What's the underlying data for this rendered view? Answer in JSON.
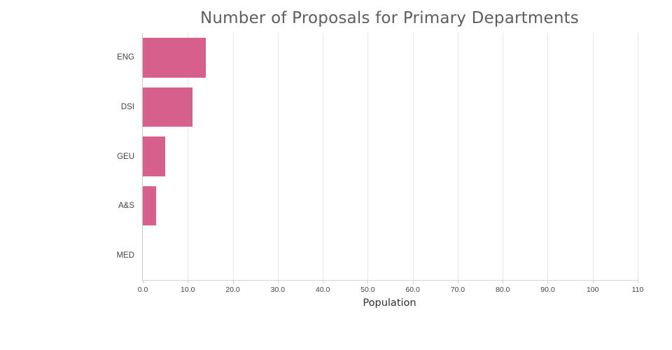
{
  "title": "Number of Proposals for Primary Departments",
  "chart_data": {
    "type": "bar",
    "orientation": "horizontal",
    "title": "Number of Proposals for Primary Departments",
    "categories": [
      "ENG",
      "DSI",
      "GEU",
      "A&S",
      "MED"
    ],
    "values": [
      14,
      11,
      5,
      3,
      0
    ],
    "xlabel": "Population",
    "ylabel": "",
    "xlim": [
      0,
      110
    ],
    "xticks": [
      0,
      10,
      20,
      30,
      40,
      50,
      60,
      70,
      80,
      90,
      100,
      110
    ],
    "xtick_labels": [
      "0.0",
      "10.0",
      "20.0",
      "30.0",
      "40.0",
      "50.0",
      "60.0",
      "70.0",
      "80.0",
      "90.0",
      "100",
      "110"
    ],
    "grid": true,
    "legend": false,
    "bar_color": "#d6608b",
    "grid_color": "#e7e7e7",
    "axis_color": "#c9c9c9",
    "title_color": "#5e5e5e",
    "tick_color": "#444444"
  }
}
